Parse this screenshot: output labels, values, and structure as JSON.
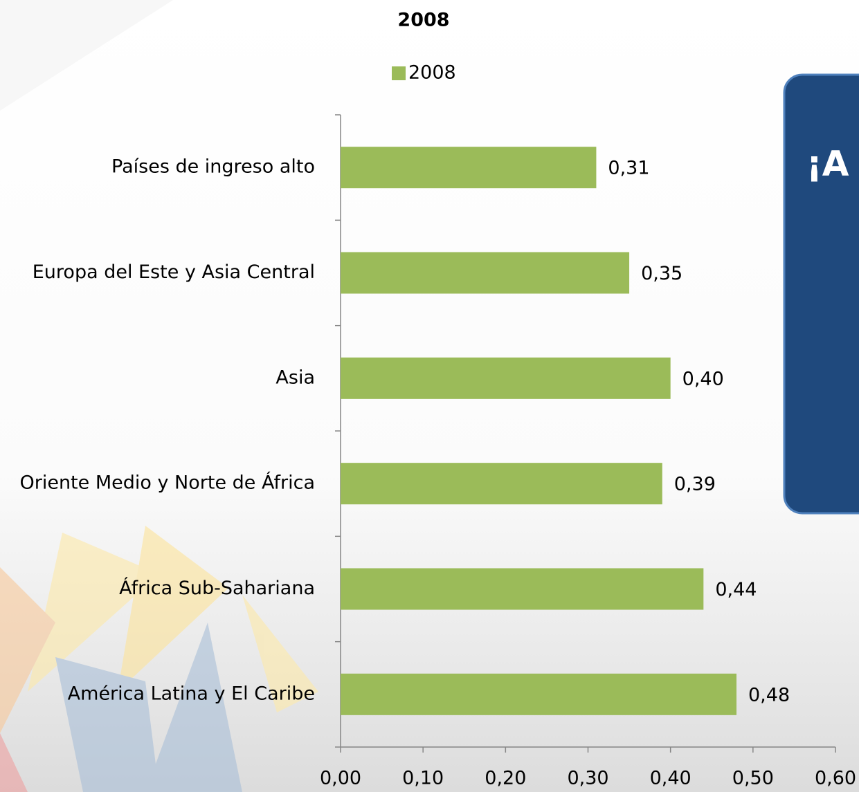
{
  "chart_data": {
    "type": "bar",
    "orientation": "horizontal",
    "title": "2008",
    "categories": [
      "Países de ingreso alto",
      "Europa del Este y Asia Central",
      "Asia",
      "Oriente Medio y Norte de África",
      "África Sub-Sahariana",
      "América Latina y El Caribe"
    ],
    "series": [
      {
        "name": "2008",
        "color": "#9bbb59",
        "values": [
          0.31,
          0.35,
          0.4,
          0.39,
          0.44,
          0.48
        ],
        "value_labels": [
          "0,31",
          "0,35",
          "0,40",
          "0,39",
          "0,44",
          "0,48"
        ]
      }
    ],
    "xlim": [
      0,
      0.6
    ],
    "xticks": [
      {
        "value": 0,
        "label": "0,00"
      },
      {
        "value": 0.1,
        "label": "0,10"
      },
      {
        "value": 0.2,
        "label": "0,20"
      },
      {
        "value": 0.3,
        "label": "0,30"
      },
      {
        "value": 0.4,
        "label": "0,40"
      },
      {
        "value": 0.5,
        "label": "0,50"
      },
      {
        "value": 0.6,
        "label": "0,60"
      }
    ],
    "legend": "top",
    "grid": false
  },
  "panel": {
    "text": "¡A"
  }
}
